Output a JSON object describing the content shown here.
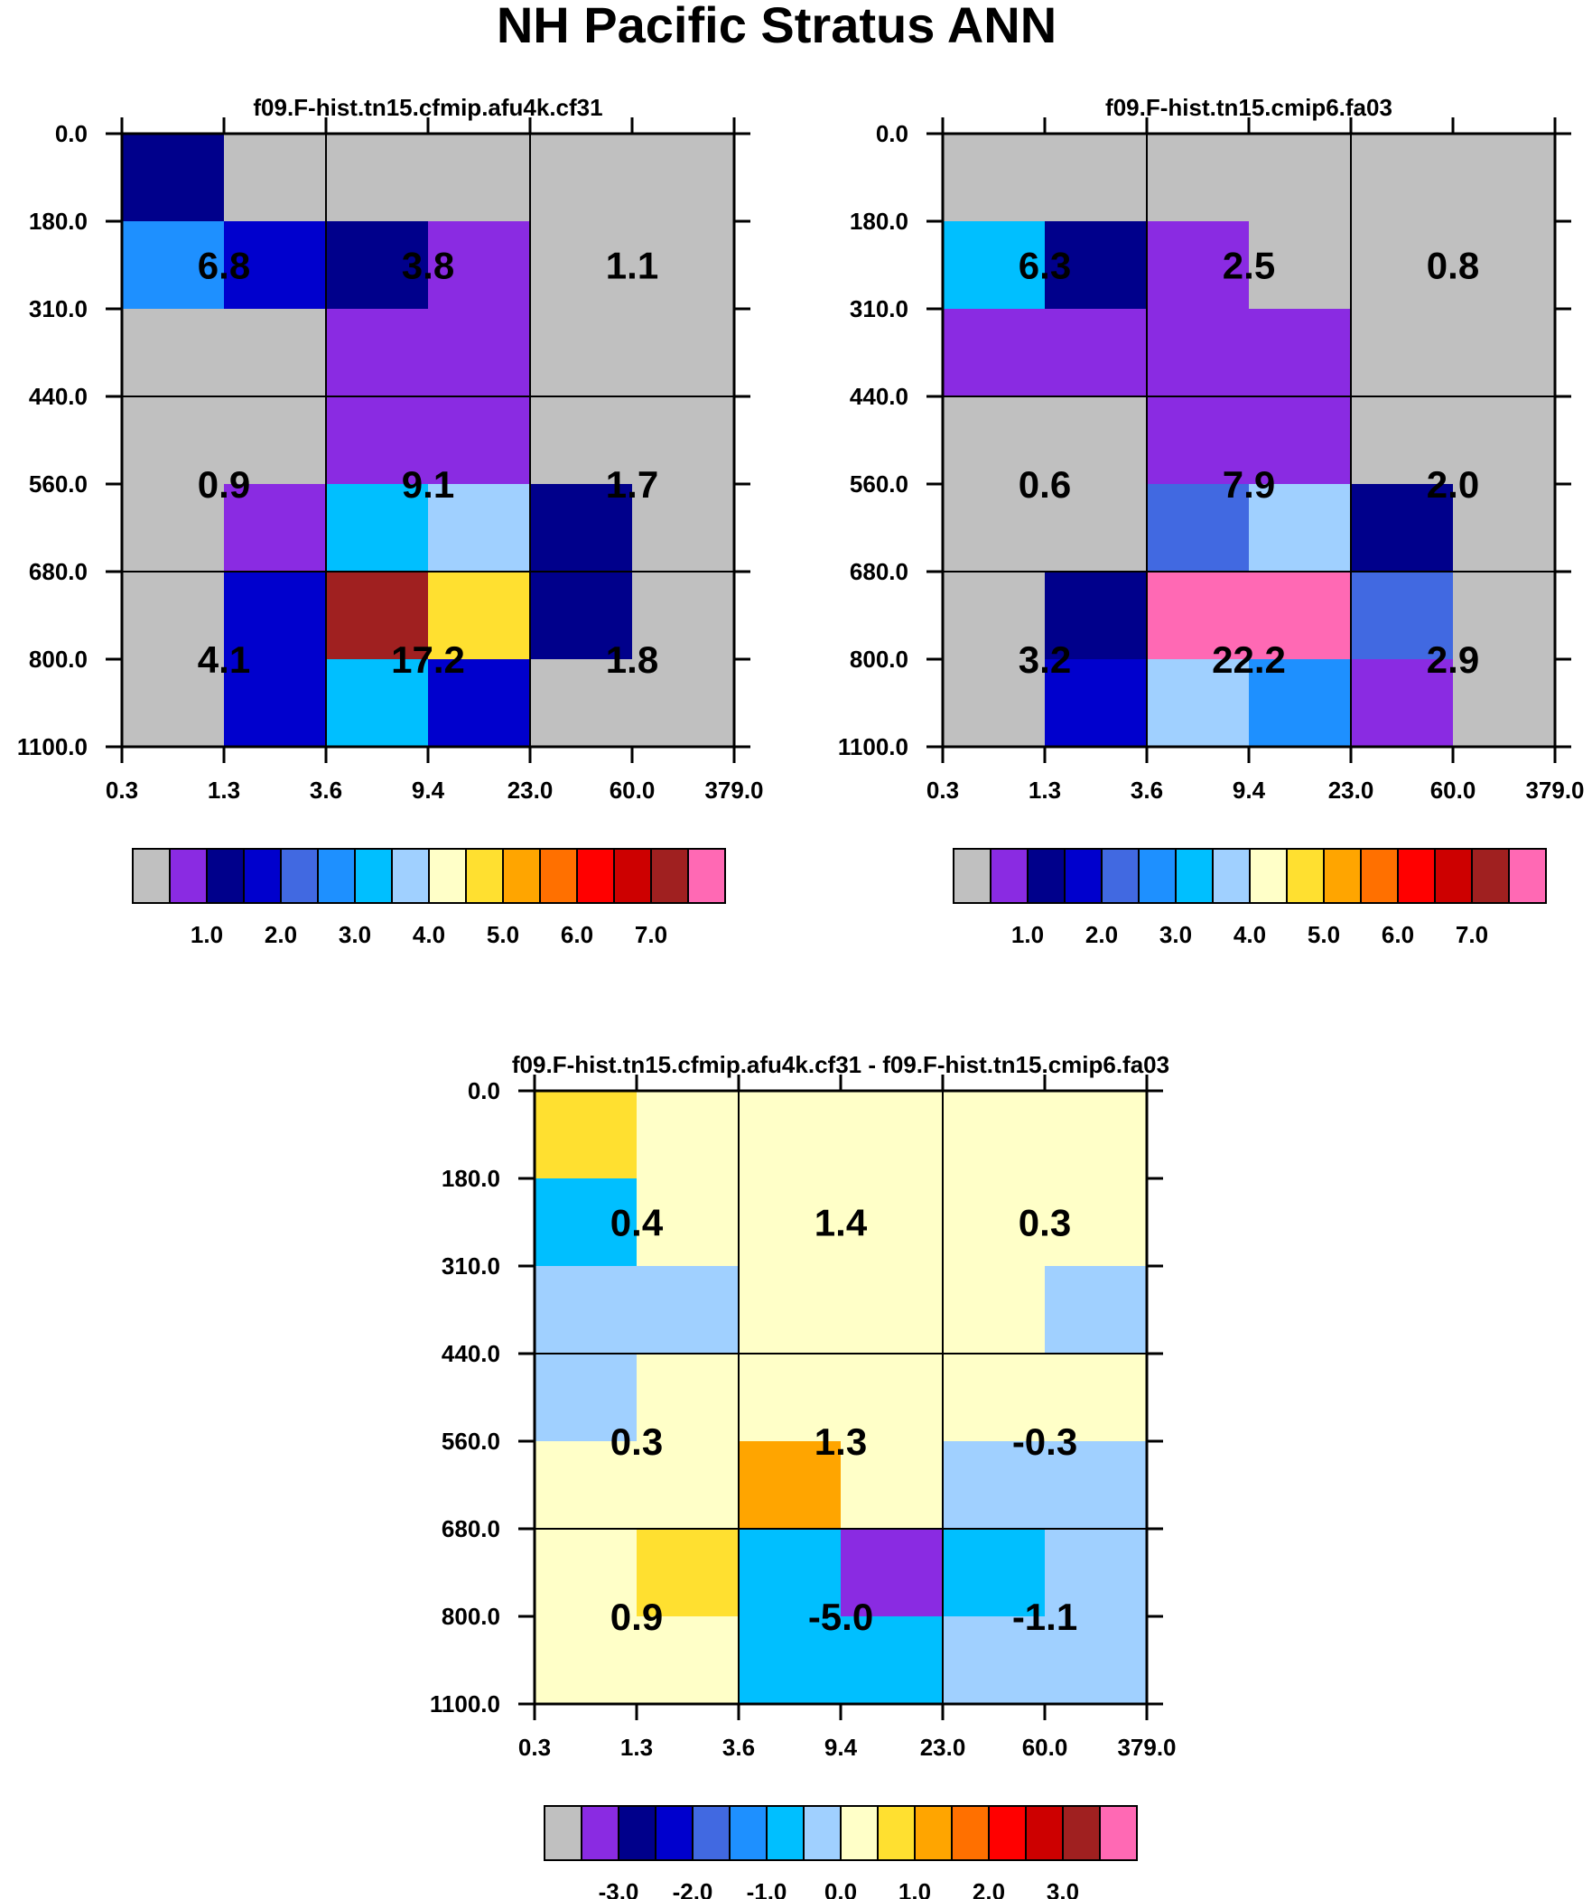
{
  "page_title": "NH Pacific Stratus ANN",
  "colors": {
    "abs_palette": [
      "#c0c0c0",
      "#8a2be2",
      "#00008b",
      "#0000cd",
      "#4169e1",
      "#1e90ff",
      "#00bfff",
      "#a0d0ff",
      "#ffffc8",
      "#ffe030",
      "#ffa500",
      "#ff7000",
      "#ff0000",
      "#cd0000",
      "#a02020",
      "#ff69b4"
    ],
    "diff_palette": [
      "#c0c0c0",
      "#8a2be2",
      "#00008b",
      "#0000cd",
      "#4169e1",
      "#1e90ff",
      "#00bfff",
      "#a0d0ff",
      "#ffffc8",
      "#ffe030",
      "#ffa500",
      "#ff7000",
      "#ff0000",
      "#cd0000",
      "#a02020",
      "#ff69b4"
    ]
  },
  "chart_data": [
    {
      "type": "heatmap",
      "title": "f09.F-hist.tn15.cfmip.afu4k.cf31",
      "x_tick_labels": [
        "0.3",
        "1.3",
        "3.6",
        "9.4",
        "23.0",
        "60.0",
        "379.0"
      ],
      "y_tick_labels": [
        "0.0",
        "180.0",
        "310.0",
        "440.0",
        "560.0",
        "680.0",
        "800.0",
        "1100.0"
      ],
      "cell_color_index": [
        [
          2,
          0,
          0,
          0,
          0,
          0
        ],
        [
          5,
          3,
          2,
          1,
          0,
          0
        ],
        [
          0,
          0,
          1,
          1,
          0,
          0
        ],
        [
          0,
          0,
          1,
          1,
          0,
          0
        ],
        [
          0,
          1,
          6,
          7,
          2,
          0
        ],
        [
          0,
          3,
          14,
          9,
          2,
          0
        ],
        [
          0,
          3,
          6,
          3,
          0,
          0
        ]
      ],
      "summary_values": [
        [
          "6.8",
          "3.8",
          "1.1"
        ],
        [
          "0.9",
          "9.1",
          "1.7"
        ],
        [
          "4.1",
          "17.2",
          "1.8"
        ]
      ],
      "colorbar_labels": [
        "1.0",
        "2.0",
        "3.0",
        "4.0",
        "5.0",
        "6.0",
        "7.0"
      ]
    },
    {
      "type": "heatmap",
      "title": "f09.F-hist.tn15.cmip6.fa03",
      "x_tick_labels": [
        "0.3",
        "1.3",
        "3.6",
        "9.4",
        "23.0",
        "60.0",
        "379.0"
      ],
      "y_tick_labels": [
        "0.0",
        "180.0",
        "310.0",
        "440.0",
        "560.0",
        "680.0",
        "800.0",
        "1100.0"
      ],
      "cell_color_index": [
        [
          0,
          0,
          0,
          0,
          0,
          0
        ],
        [
          6,
          2,
          1,
          0,
          0,
          0
        ],
        [
          1,
          1,
          1,
          1,
          0,
          0
        ],
        [
          0,
          0,
          1,
          1,
          0,
          0
        ],
        [
          0,
          0,
          4,
          7,
          2,
          0
        ],
        [
          0,
          2,
          15,
          15,
          4,
          0
        ],
        [
          0,
          3,
          7,
          5,
          1,
          0
        ]
      ],
      "summary_values": [
        [
          "6.3",
          "2.5",
          "0.8"
        ],
        [
          "0.6",
          "7.9",
          "2.0"
        ],
        [
          "3.2",
          "22.2",
          "2.9"
        ]
      ],
      "colorbar_labels": [
        "1.0",
        "2.0",
        "3.0",
        "4.0",
        "5.0",
        "6.0",
        "7.0"
      ]
    },
    {
      "type": "heatmap",
      "title": "f09.F-hist.tn15.cfmip.afu4k.cf31 - f09.F-hist.tn15.cmip6.fa03",
      "x_tick_labels": [
        "0.3",
        "1.3",
        "3.6",
        "9.4",
        "23.0",
        "60.0",
        "379.0"
      ],
      "y_tick_labels": [
        "0.0",
        "180.0",
        "310.0",
        "440.0",
        "560.0",
        "680.0",
        "800.0",
        "1100.0"
      ],
      "cell_color_index": [
        [
          9,
          8,
          8,
          8,
          8,
          8
        ],
        [
          6,
          8,
          8,
          8,
          8,
          8
        ],
        [
          7,
          7,
          8,
          8,
          8,
          7
        ],
        [
          7,
          8,
          8,
          8,
          8,
          8
        ],
        [
          8,
          8,
          10,
          8,
          7,
          7
        ],
        [
          8,
          9,
          6,
          1,
          6,
          7
        ],
        [
          8,
          8,
          6,
          6,
          7,
          7
        ]
      ],
      "summary_values": [
        [
          "0.4",
          "1.4",
          "0.3"
        ],
        [
          "0.3",
          "1.3",
          "-0.3"
        ],
        [
          "0.9",
          "-5.0",
          "-1.1"
        ]
      ],
      "colorbar_labels": [
        "-3.0",
        "-2.0",
        "-1.0",
        "0.0",
        "1.0",
        "2.0",
        "3.0"
      ]
    }
  ]
}
